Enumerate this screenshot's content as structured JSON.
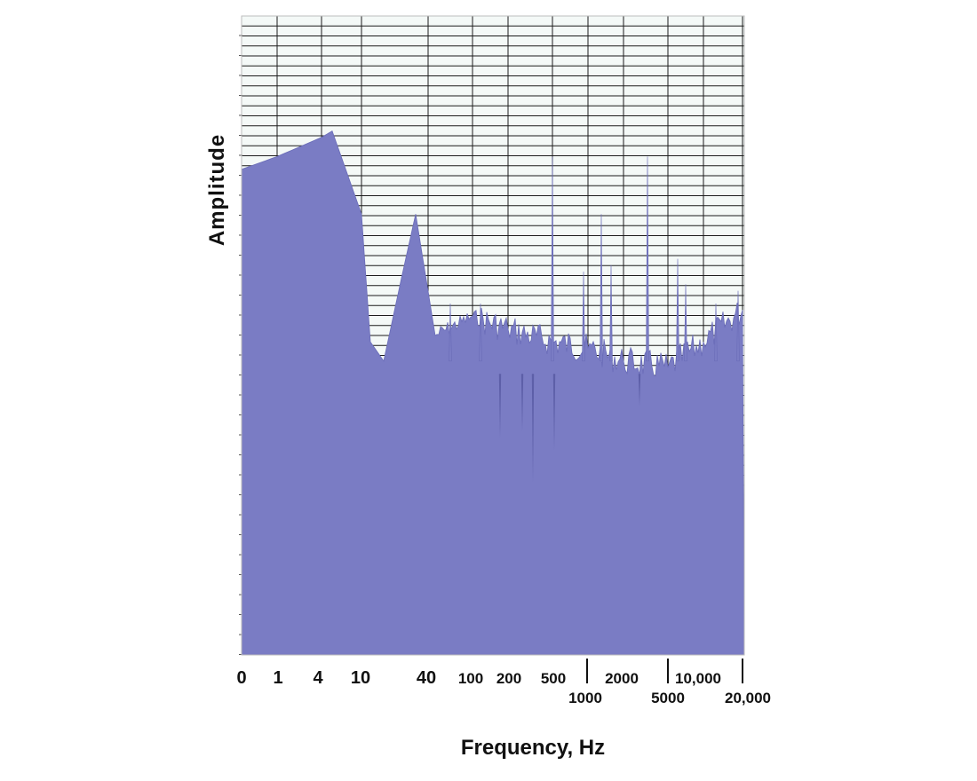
{
  "chart_data": {
    "type": "area",
    "title": "",
    "xlabel": "Frequency, Hz",
    "ylabel": "Amplitude",
    "x_scale": "log-like (custom)",
    "x_ticks_upper": [
      "0",
      "1",
      "4",
      "10",
      "40",
      "100",
      "200",
      "500",
      "2000",
      "10,000"
    ],
    "x_ticks_lower": [
      "1000",
      "5000",
      "20,000"
    ],
    "y_ticks": [],
    "grid": true,
    "legend": "none",
    "colors": {
      "fill": "#7a7cc4",
      "fill_stroke": "#6a6cb8",
      "plot_bg": "#f4f9f7",
      "grid": "#1c1c1c",
      "text": "#111111"
    },
    "series": [
      {
        "x": [
          "0",
          "1",
          "4",
          "~5",
          "10",
          "12",
          "15",
          "~30",
          "40",
          "60",
          "100",
          "200",
          "500",
          "1000",
          "2000",
          "5000",
          "10,000",
          "20,000"
        ],
        "values": [
          0.76,
          0.78,
          0.81,
          0.82,
          0.69,
          0.49,
          0.46,
          0.59,
          0.69,
          0.5,
          0.53,
          0.51,
          0.49,
          0.48,
          0.46,
          0.45,
          0.49,
          0.54
        ]
      }
    ]
  }
}
